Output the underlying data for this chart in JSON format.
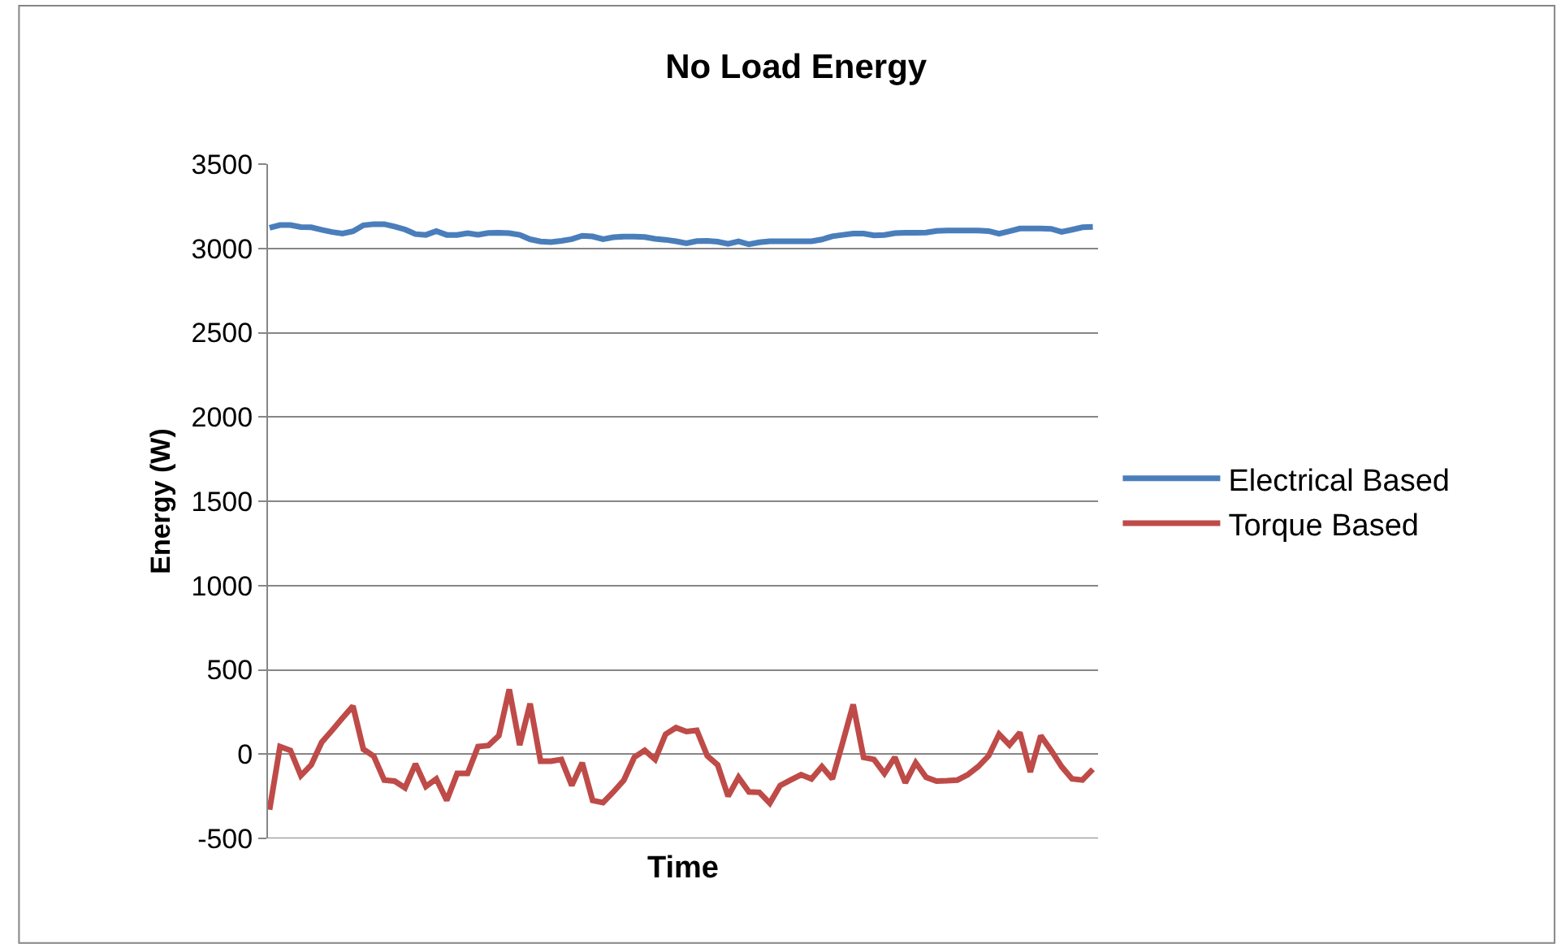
{
  "chart_data": {
    "type": "line",
    "title": "No Load Energy",
    "xlabel": "Time",
    "ylabel": "Energy (W)",
    "categories": [
      null,
      null,
      null,
      null,
      null,
      null,
      null,
      null,
      null,
      null,
      null,
      null,
      null,
      null,
      null,
      null,
      null,
      null,
      null,
      null,
      null,
      null,
      null,
      null,
      null,
      null,
      null,
      null,
      null,
      null,
      null,
      null,
      null,
      null,
      null,
      null,
      null,
      null,
      null,
      null,
      null,
      null,
      null,
      null,
      null,
      null,
      null,
      null,
      null,
      null,
      null,
      null,
      null,
      null,
      null,
      null,
      null,
      null,
      null,
      null,
      null,
      null,
      null,
      null,
      null,
      null,
      null,
      null,
      null,
      null,
      null,
      null,
      null,
      null,
      null,
      null,
      null,
      null,
      null,
      null
    ],
    "ylim": [
      -500,
      3500
    ],
    "yticks": [
      -500,
      0,
      500,
      1000,
      1500,
      2000,
      2500,
      3000,
      3500
    ],
    "tick_labels": "y",
    "grid": "y",
    "legend": "right",
    "marker": "none",
    "line_style": "solid",
    "series": [
      {
        "name": "Electrical Based",
        "color": "#4a7ebb",
        "values": [
          3122,
          3138,
          3138,
          3127,
          3125,
          3110,
          3097,
          3088,
          3101,
          3137,
          3144,
          3144,
          3130,
          3112,
          3085,
          3080,
          3103,
          3080,
          3080,
          3090,
          3081,
          3091,
          3093,
          3090,
          3080,
          3054,
          3041,
          3037,
          3045,
          3055,
          3075,
          3071,
          3055,
          3066,
          3070,
          3070,
          3067,
          3057,
          3051,
          3042,
          3030,
          3043,
          3045,
          3040,
          3027,
          3042,
          3024,
          3036,
          3042,
          3042,
          3042,
          3042,
          3042,
          3053,
          3072,
          3080,
          3088,
          3088,
          3077,
          3080,
          3090,
          3093,
          3093,
          3094,
          3104,
          3106,
          3106,
          3106,
          3106,
          3103,
          3087,
          3102,
          3118,
          3118,
          3118,
          3116,
          3098,
          3111,
          3125,
          3128
        ]
      },
      {
        "name": "Torque Based",
        "color": "#be4b48",
        "values": [
          -330,
          45,
          22,
          -128,
          -64,
          70,
          141,
          214,
          285,
          29,
          -13,
          -154,
          -160,
          -200,
          -58,
          -192,
          -147,
          -275,
          -115,
          -115,
          45,
          51,
          109,
          384,
          54,
          300,
          -42,
          -42,
          -32,
          -186,
          -51,
          -275,
          -288,
          -224,
          -154,
          -19,
          22,
          -32,
          118,
          157,
          134,
          141,
          -10,
          -64,
          -250,
          -138,
          -224,
          -227,
          -291,
          -186,
          -154,
          -122,
          -147,
          -74,
          -147,
          70,
          294,
          -19,
          -32,
          -115,
          -19,
          -170,
          -51,
          -138,
          -160,
          -158,
          -154,
          -122,
          -74,
          -10,
          118,
          54,
          128,
          -106,
          109,
          22,
          -74,
          -147,
          -154,
          -90
        ]
      }
    ]
  }
}
